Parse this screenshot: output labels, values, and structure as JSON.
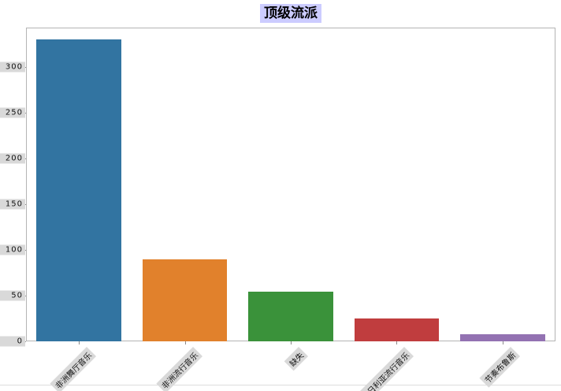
{
  "chart_data": {
    "type": "bar",
    "title": "顶级流派",
    "title_color": "#000000",
    "title_highlight_bg": "#ccccff",
    "tick_label_bg": "#d9d9d9",
    "categories": [
      "非洲舞厅音乐",
      "非洲流行音乐",
      "缺失",
      "尼日利亚流行音乐",
      "节奏布鲁斯"
    ],
    "values": [
      330,
      90,
      54,
      25,
      8
    ],
    "bar_colors": [
      "#3274a1",
      "#e1812c",
      "#3a923a",
      "#c03d3e",
      "#9372b2"
    ],
    "xlabel": "",
    "ylabel": "",
    "ylim": [
      0,
      343
    ],
    "yticks": [
      0,
      50,
      100,
      150,
      200,
      250,
      300
    ],
    "x_tick_rotation_deg": 45,
    "grid": false,
    "legend": false
  }
}
